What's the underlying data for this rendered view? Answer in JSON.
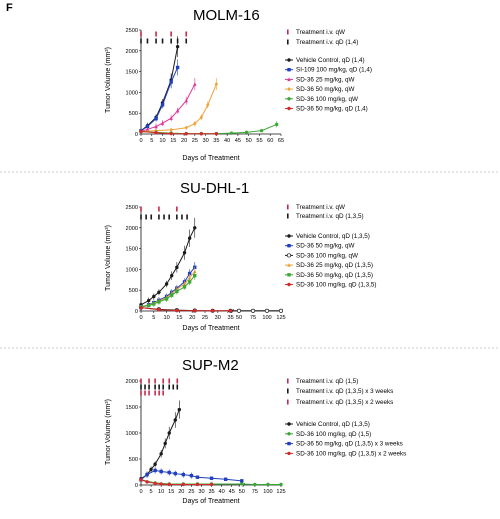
{
  "panel_letter": "F",
  "colors": {
    "black": "#1a1a1a",
    "blue": "#1f3fbf",
    "pink": "#e0369a",
    "orange": "#f0a235",
    "green": "#3aa835",
    "red": "#d42a2a",
    "treat_red": "#c8294b"
  },
  "chart_data": [
    {
      "type": "line",
      "title": "MOLM-16",
      "xlabel": "Days of Treatment",
      "ylabel": "Tumor Volume (mm³)",
      "xlim": [
        0,
        65
      ],
      "ylim": [
        0,
        2500
      ],
      "xticks": [
        "0",
        "5",
        "10",
        "15",
        "20",
        "25",
        "30",
        "35",
        "40",
        "45",
        "50",
        "55",
        "60",
        "65"
      ],
      "yticks": [
        "0",
        "500",
        "1000",
        "1500",
        "2000",
        "2500"
      ],
      "treatments": [
        {
          "label": "Treatment i.v. qW",
          "color": "treat_red",
          "days": [
            0,
            7,
            14,
            21
          ]
        },
        {
          "label": "Treatment i.v. qD (1,4)",
          "color": "black",
          "days": [
            0,
            3,
            7,
            10,
            14,
            17,
            21
          ]
        }
      ],
      "series": [
        {
          "name": "Vehicle Control, qD (1,4)",
          "color": "black",
          "marker": "circle",
          "x": [
            0,
            3,
            7,
            10,
            14,
            17
          ],
          "y": [
            80,
            200,
            400,
            750,
            1300,
            2100
          ]
        },
        {
          "name": "SI-109 100 mg/kg, qD (1,4)",
          "color": "blue",
          "marker": "square",
          "x": [
            0,
            3,
            7,
            10,
            14,
            17
          ],
          "y": [
            80,
            180,
            370,
            700,
            1250,
            1600
          ]
        },
        {
          "name": "SD-36 25 mg/kg, qW",
          "color": "pink",
          "marker": "triangle",
          "x": [
            0,
            3,
            7,
            10,
            14,
            17,
            21,
            25
          ],
          "y": [
            70,
            110,
            180,
            260,
            380,
            560,
            800,
            1200
          ]
        },
        {
          "name": "SD-36 50 mg/kg, qW",
          "color": "orange",
          "marker": "diamond",
          "x": [
            0,
            7,
            14,
            21,
            25,
            28,
            31,
            35
          ],
          "y": [
            60,
            80,
            100,
            150,
            250,
            400,
            700,
            1200
          ]
        },
        {
          "name": "SD-36 100 mg/kg, qW",
          "color": "green",
          "marker": "circle",
          "x": [
            0,
            7,
            14,
            21,
            28,
            35,
            42,
            49,
            56,
            63
          ],
          "y": [
            60,
            40,
            20,
            10,
            10,
            10,
            20,
            40,
            80,
            230
          ]
        },
        {
          "name": "SD-36 50 mg/kg, qD (1,4)",
          "color": "red",
          "marker": "circle",
          "x": [
            0,
            7,
            14,
            21,
            28,
            35
          ],
          "y": [
            60,
            30,
            10,
            5,
            5,
            5
          ]
        }
      ]
    },
    {
      "type": "line",
      "title": "SU-DHL-1",
      "xlabel": "Days of Treatment",
      "ylabel": "Tumor Volume (mm³)",
      "xlim": [
        0,
        125
      ],
      "ylim": [
        0,
        2500
      ],
      "xticks": [
        "0",
        "5",
        "10",
        "15",
        "20",
        "25",
        "30",
        "35",
        "50",
        "75",
        "100",
        "125"
      ],
      "yticks": [
        "0",
        "500",
        "1000",
        "1500",
        "2000",
        "2500"
      ],
      "treatments": [
        {
          "label": "Treatment i.v. qW",
          "color": "treat_red",
          "days": [
            0,
            7,
            14
          ]
        },
        {
          "label": "Treatment i.v. qD (1,3,5)",
          "color": "black",
          "days": [
            0,
            2,
            4,
            7,
            9,
            11,
            14,
            16,
            18
          ]
        }
      ],
      "series": [
        {
          "name": "Vehicle Control, qD (1,3,5)",
          "color": "black",
          "marker": "circle",
          "x": [
            0,
            3,
            5,
            7,
            10,
            12,
            14,
            17,
            19,
            21
          ],
          "y": [
            150,
            250,
            350,
            450,
            650,
            850,
            1050,
            1400,
            1750,
            2000
          ]
        },
        {
          "name": "SD-36 50 mg/kg, qW",
          "color": "blue",
          "marker": "square",
          "x": [
            0,
            3,
            5,
            7,
            10,
            12,
            14,
            17,
            19,
            21
          ],
          "y": [
            100,
            150,
            200,
            260,
            350,
            450,
            550,
            700,
            900,
            1050
          ]
        },
        {
          "name": "SD-36 100 mg/kg, qW",
          "color": "black",
          "marker": "open-circle",
          "x": [
            0,
            7,
            14,
            21,
            28,
            35,
            50,
            75,
            100,
            125
          ],
          "y": [
            80,
            40,
            20,
            10,
            5,
            5,
            5,
            5,
            5,
            5
          ]
        },
        {
          "name": "SD-36 25 mg/kg, qD (1,3,5)",
          "color": "orange",
          "marker": "triangle",
          "x": [
            0,
            3,
            5,
            7,
            10,
            12,
            14,
            17,
            19,
            21
          ],
          "y": [
            100,
            140,
            190,
            240,
            320,
            420,
            520,
            650,
            800,
            950
          ]
        },
        {
          "name": "SD-36 50 mg/kg, qD (1,3,5)",
          "color": "green",
          "marker": "square",
          "x": [
            0,
            3,
            5,
            7,
            10,
            12,
            14,
            17,
            19,
            21
          ],
          "y": [
            100,
            130,
            170,
            220,
            290,
            380,
            470,
            580,
            700,
            850
          ]
        },
        {
          "name": "SD-36 100 mg/kg, qD (1,3,5)",
          "color": "red",
          "marker": "circle",
          "x": [
            0,
            7,
            14,
            21,
            28,
            35
          ],
          "y": [
            80,
            30,
            10,
            5,
            5,
            5
          ]
        }
      ]
    },
    {
      "type": "line",
      "title": "SUP-M2",
      "xlabel": "Days of Treatment",
      "ylabel": "Tumor Volume (mm³)",
      "xlim": [
        0,
        125
      ],
      "ylim": [
        0,
        2000
      ],
      "xticks": [
        "0",
        "5",
        "10",
        "15",
        "20",
        "25",
        "30",
        "35",
        "40",
        "45",
        "50",
        "75",
        "100",
        "125"
      ],
      "yticks": [
        "0",
        "500",
        "1000",
        "1500",
        "2000"
      ],
      "treatments": [
        {
          "label": "Treatment i.v. qD (1,5)",
          "color": "treat_red",
          "days": [
            0,
            4,
            7,
            11,
            14,
            18
          ]
        },
        {
          "label": "Treatment i.v. qD (1,3,5) x 3 weeks",
          "color": "black",
          "days": [
            0,
            2,
            4,
            7,
            9,
            11,
            14,
            16,
            18
          ]
        },
        {
          "label": "Treatment i.v. qD (1,3,5) x 2 weeks",
          "color": "treat_red",
          "days": [
            0,
            2,
            4,
            7,
            9,
            11
          ]
        }
      ],
      "series": [
        {
          "name": "Vehicle Control, qD (1,3,5)",
          "color": "black",
          "marker": "circle",
          "x": [
            0,
            3,
            5,
            7,
            10,
            12,
            14,
            17,
            19
          ],
          "y": [
            120,
            200,
            300,
            400,
            600,
            800,
            1000,
            1250,
            1450
          ]
        },
        {
          "name": "SD-36 100 mg/kg, qD (1,5)",
          "color": "green",
          "marker": "circle",
          "x": [
            0,
            7,
            14,
            21,
            28,
            35,
            50,
            75,
            100,
            125
          ],
          "y": [
            100,
            40,
            20,
            20,
            20,
            20,
            20,
            10,
            10,
            10
          ]
        },
        {
          "name": "SD-36 50 mg/kg, qD (1,3,5) x 3 weeks",
          "color": "blue",
          "marker": "square",
          "x": [
            0,
            3,
            7,
            10,
            14,
            17,
            21,
            25,
            28,
            35,
            42,
            50
          ],
          "y": [
            100,
            200,
            280,
            260,
            240,
            220,
            200,
            180,
            150,
            130,
            110,
            80
          ]
        },
        {
          "name": "SD-36 100 mg/kg, qD (1,3,5) x 2 weeks",
          "color": "red",
          "marker": "circle",
          "x": [
            0,
            3,
            7,
            10,
            14,
            21,
            28,
            35
          ],
          "y": [
            100,
            60,
            30,
            20,
            10,
            10,
            10,
            10
          ]
        }
      ]
    }
  ]
}
